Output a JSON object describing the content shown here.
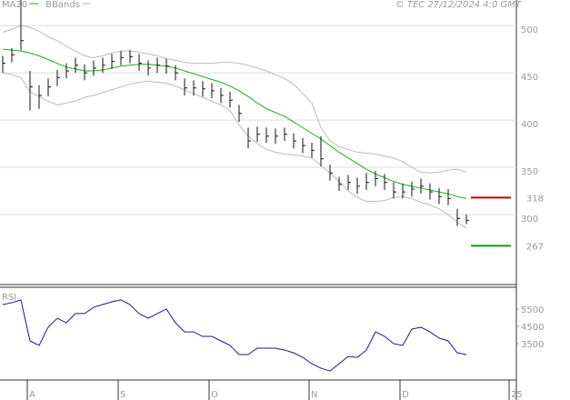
{
  "chart_data": [
    {
      "type": "ohlc",
      "source": "© TEC 27/12/2024 4:0 GMT",
      "ylim": [
        226,
        527
      ],
      "yticks": [
        300,
        350,
        400,
        450,
        500
      ],
      "grid": true,
      "bar_color": "#111111",
      "high": [
        468,
        476,
        527,
        452,
        437,
        444,
        453,
        460,
        466,
        459,
        463,
        466,
        470,
        473,
        474,
        470,
        463,
        466,
        465,
        458,
        444,
        442,
        441,
        439,
        434,
        430,
        416,
        392,
        393,
        392,
        391,
        392,
        386,
        381,
        376,
        383,
        353,
        340,
        342,
        339,
        344,
        346,
        343,
        334,
        333,
        335,
        338,
        333,
        328,
        327,
        306,
        300
      ],
      "low": [
        450,
        461,
        474,
        410,
        412,
        425,
        436,
        444,
        450,
        442,
        447,
        450,
        454,
        458,
        460,
        452,
        447,
        450,
        449,
        442,
        426,
        426,
        425,
        423,
        418,
        413,
        398,
        370,
        377,
        376,
        375,
        378,
        370,
        365,
        360,
        351,
        336,
        325,
        326,
        322,
        326,
        330,
        326,
        317,
        317,
        319,
        322,
        316,
        311,
        310,
        288,
        290
      ],
      "close": [
        460,
        469,
        484,
        435,
        426,
        435,
        445,
        452,
        458,
        450,
        455,
        458,
        462,
        466,
        467,
        460,
        455,
        458,
        457,
        450,
        434,
        434,
        433,
        431,
        426,
        421,
        407,
        378,
        385,
        383,
        383,
        385,
        378,
        373,
        368,
        359,
        344,
        332,
        334,
        330,
        334,
        338,
        334,
        324,
        324,
        327,
        330,
        324,
        319,
        317,
        296,
        294
      ],
      "series": [
        {
          "name": "MA20",
          "color": "#22aa22",
          "values": [
            475,
            474,
            473,
            471,
            468,
            464,
            460,
            456,
            454,
            452,
            452,
            453,
            455,
            457,
            458,
            459,
            459,
            458,
            457,
            455,
            452,
            449,
            446,
            443,
            440,
            436,
            431,
            425,
            418,
            412,
            408,
            404,
            398,
            392,
            386,
            380,
            373,
            366,
            360,
            354,
            348,
            343,
            339,
            335,
            332,
            330,
            328,
            326,
            324,
            322,
            319,
            317
          ]
        },
        {
          "name": "BBands",
          "color": "#bbbbbb",
          "upper": [
            493,
            496,
            500,
            498,
            494,
            488,
            484,
            478,
            473,
            468,
            466,
            468,
            471,
            473,
            473,
            472,
            470,
            468,
            465,
            463,
            461,
            460,
            460,
            460,
            461,
            461,
            460,
            458,
            455,
            452,
            448,
            444,
            438,
            428,
            418,
            392,
            378,
            372,
            369,
            366,
            365,
            364,
            362,
            360,
            356,
            350,
            345,
            344,
            345,
            347,
            348,
            345
          ],
          "lower": [
            450,
            448,
            445,
            430,
            425,
            420,
            416,
            418,
            420,
            424,
            426,
            429,
            432,
            435,
            438,
            440,
            441,
            440,
            439,
            436,
            432,
            428,
            424,
            420,
            416,
            410,
            395,
            383,
            375,
            369,
            366,
            364,
            363,
            362,
            360,
            352,
            344,
            335,
            325,
            318,
            314,
            314,
            315,
            318,
            319,
            317,
            313,
            310,
            306,
            300,
            292,
            286
          ]
        }
      ],
      "levels": [
        {
          "value": 318,
          "color": "#c00000"
        },
        {
          "value": 267,
          "color": "#119911"
        }
      ]
    },
    {
      "type": "line",
      "title": "RSI",
      "ylim": [
        1400,
        6760
      ],
      "yticks": [
        3500,
        4500,
        5500
      ],
      "categories": [
        null,
        null,
        null,
        "A",
        null,
        null,
        null,
        null,
        null,
        null,
        null,
        null,
        null,
        "S",
        null,
        null,
        null,
        null,
        null,
        null,
        null,
        null,
        null,
        "O",
        null,
        null,
        null,
        null,
        null,
        null,
        null,
        null,
        null,
        null,
        "N",
        null,
        null,
        null,
        null,
        null,
        null,
        null,
        null,
        null,
        "D",
        null,
        null,
        null,
        null,
        null,
        null,
        null,
        null,
        null,
        null,
        null,
        "25"
      ],
      "series": [
        {
          "color": "#1a1a8c",
          "values": [
            5760,
            5870,
            6030,
            3660,
            3400,
            4450,
            4970,
            4710,
            5240,
            5240,
            5600,
            5760,
            5920,
            6030,
            5760,
            5240,
            4970,
            5240,
            5500,
            4710,
            4180,
            4180,
            3920,
            3920,
            3660,
            3400,
            2870,
            2870,
            3240,
            3240,
            3240,
            3130,
            2970,
            2710,
            2340,
            2080,
            1920,
            2340,
            2760,
            2710,
            3130,
            4180,
            3920,
            3500,
            3400,
            4340,
            4450,
            4180,
            3820,
            3660,
            2970,
            2870,
            null,
            null,
            null,
            null,
            null
          ]
        }
      ]
    }
  ]
}
